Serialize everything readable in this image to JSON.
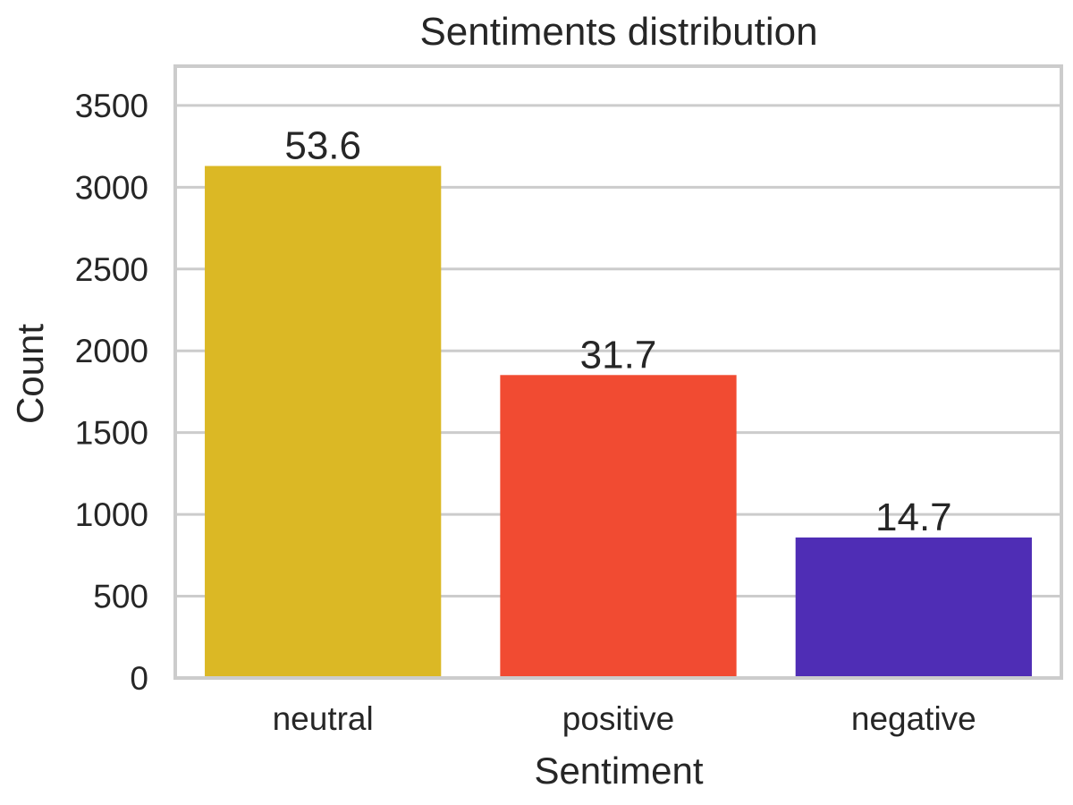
{
  "chart_data": {
    "type": "bar",
    "title": "Sentiments distribution",
    "xlabel": "Sentiment",
    "ylabel": "Count",
    "categories": [
      "neutral",
      "positive",
      "negative"
    ],
    "values": [
      3130,
      1852,
      859
    ],
    "bar_labels": [
      "53.6",
      "31.7",
      "14.7"
    ],
    "colors": [
      "#DBB825",
      "#F14B32",
      "#4F2DB5"
    ],
    "ylim": [
      0,
      3740
    ],
    "yticks": [
      0,
      500,
      1000,
      1500,
      2000,
      2500,
      3000,
      3500
    ],
    "grid": true,
    "grid_axis": "y",
    "legend": "none"
  }
}
